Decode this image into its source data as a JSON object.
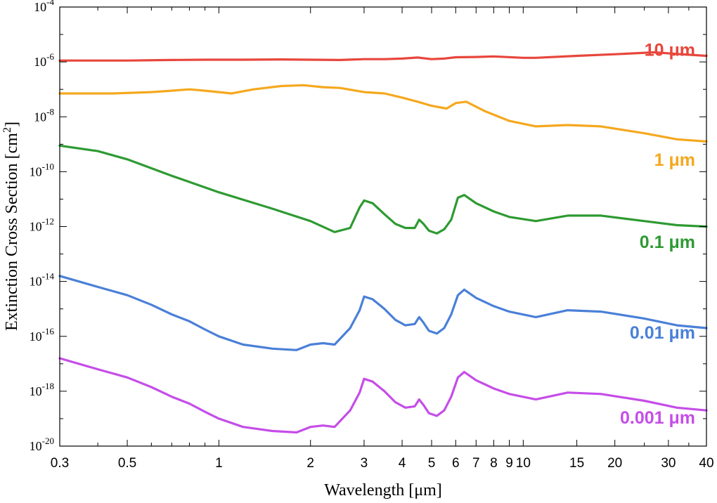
{
  "chart_data": {
    "type": "line",
    "title": "",
    "xlabel": "Wavelength [μm]",
    "ylabel": "Extinction Cross Section [cm2]",
    "xscale": "log",
    "yscale": "log",
    "xlim": [
      0.3,
      40
    ],
    "ylim_log10": [
      -20,
      -4
    ],
    "x_ticks": [
      {
        "value": 0.3,
        "label": "0.3"
      },
      {
        "value": 0.5,
        "label": "0.5"
      },
      {
        "value": 1,
        "label": "1"
      },
      {
        "value": 2,
        "label": "2"
      },
      {
        "value": 3,
        "label": "3"
      },
      {
        "value": 4,
        "label": "4"
      },
      {
        "value": 5,
        "label": "5"
      },
      {
        "value": 6,
        "label": "6"
      },
      {
        "value": 7,
        "label": "7"
      },
      {
        "value": 8,
        "label": "8"
      },
      {
        "value": 9,
        "label": "9"
      },
      {
        "value": 10,
        "label": "10"
      },
      {
        "value": 15,
        "label": "15"
      },
      {
        "value": 20,
        "label": "20"
      },
      {
        "value": 30,
        "label": "30"
      },
      {
        "value": 40,
        "label": "40"
      }
    ],
    "y_ticks": [
      {
        "exp": -4,
        "base": "10",
        "power": "-4"
      },
      {
        "exp": -6,
        "base": "10",
        "power": "-6"
      },
      {
        "exp": -8,
        "base": "10",
        "power": "-8"
      },
      {
        "exp": -10,
        "base": "10",
        "power": "-10"
      },
      {
        "exp": -12,
        "base": "10",
        "power": "-12"
      },
      {
        "exp": -14,
        "base": "10",
        "power": "-14"
      },
      {
        "exp": -16,
        "base": "10",
        "power": "-16"
      },
      {
        "exp": -18,
        "base": "10",
        "power": "-18"
      },
      {
        "exp": -20,
        "base": "10",
        "power": "-20"
      }
    ],
    "series": [
      {
        "name": "10 μm",
        "color": "#e8463c",
        "x": [
          0.3,
          0.5,
          0.7,
          0.9,
          1.2,
          1.6,
          2.0,
          2.5,
          3.0,
          3.5,
          4.0,
          4.5,
          5.0,
          5.5,
          6.0,
          7.0,
          8.0,
          10.0,
          11.0,
          15.0,
          20.0,
          27.0,
          33.0,
          40.0
        ],
        "log10y": [
          -5.95,
          -5.95,
          -5.93,
          -5.92,
          -5.92,
          -5.91,
          -5.92,
          -5.93,
          -5.9,
          -5.9,
          -5.88,
          -5.84,
          -5.9,
          -5.88,
          -5.83,
          -5.82,
          -5.8,
          -5.85,
          -5.85,
          -5.78,
          -5.72,
          -5.65,
          -5.72,
          -5.78
        ]
      },
      {
        "name": "1 μm",
        "color": "#f5a81e",
        "x": [
          0.3,
          0.45,
          0.6,
          0.7,
          0.8,
          0.9,
          1.0,
          1.1,
          1.3,
          1.6,
          1.9,
          2.2,
          2.5,
          3.0,
          3.5,
          4.0,
          4.5,
          5.0,
          5.6,
          6.0,
          6.5,
          7.5,
          9.0,
          11.0,
          14.0,
          18.0,
          25.0,
          32.0,
          40.0
        ],
        "log10y": [
          -7.15,
          -7.15,
          -7.1,
          -7.05,
          -7.0,
          -7.05,
          -7.1,
          -7.15,
          -7.0,
          -6.88,
          -6.85,
          -6.92,
          -6.95,
          -7.1,
          -7.15,
          -7.3,
          -7.45,
          -7.6,
          -7.7,
          -7.5,
          -7.45,
          -7.8,
          -8.15,
          -8.35,
          -8.3,
          -8.35,
          -8.6,
          -8.82,
          -8.9
        ]
      },
      {
        "name": "0.1 μm",
        "color": "#2e9a32",
        "x": [
          0.3,
          0.4,
          0.5,
          0.7,
          1.0,
          1.5,
          2.0,
          2.4,
          2.7,
          2.9,
          3.0,
          3.2,
          3.5,
          3.8,
          4.1,
          4.4,
          4.55,
          4.7,
          4.9,
          5.2,
          5.5,
          5.8,
          6.1,
          6.4,
          7.0,
          8.0,
          9.0,
          11.0,
          14.0,
          18.0,
          25.0,
          32.0,
          40.0
        ],
        "log10y": [
          -9.05,
          -9.25,
          -9.55,
          -10.15,
          -10.75,
          -11.35,
          -11.8,
          -12.2,
          -12.05,
          -11.3,
          -11.05,
          -11.15,
          -11.55,
          -11.9,
          -12.05,
          -12.05,
          -11.75,
          -11.9,
          -12.15,
          -12.25,
          -12.1,
          -11.75,
          -10.95,
          -10.85,
          -11.15,
          -11.45,
          -11.65,
          -11.8,
          -11.6,
          -11.6,
          -11.8,
          -11.95,
          -12.0
        ]
      },
      {
        "name": "0.01 μm",
        "color": "#4a80d8",
        "x": [
          0.3,
          0.4,
          0.5,
          0.6,
          0.7,
          0.8,
          0.9,
          1.0,
          1.2,
          1.5,
          1.8,
          2.0,
          2.2,
          2.4,
          2.7,
          2.9,
          3.0,
          3.2,
          3.5,
          3.8,
          4.1,
          4.4,
          4.55,
          4.7,
          4.9,
          5.2,
          5.5,
          5.8,
          6.1,
          6.4,
          7.0,
          8.0,
          9.0,
          11.0,
          14.0,
          18.0,
          25.0,
          32.0,
          40.0
        ],
        "log10y": [
          -13.8,
          -14.2,
          -14.5,
          -14.85,
          -15.2,
          -15.45,
          -15.75,
          -16.0,
          -16.3,
          -16.45,
          -16.5,
          -16.3,
          -16.25,
          -16.3,
          -15.7,
          -15.05,
          -14.55,
          -14.65,
          -15.0,
          -15.4,
          -15.6,
          -15.55,
          -15.3,
          -15.5,
          -15.8,
          -15.9,
          -15.7,
          -15.2,
          -14.5,
          -14.3,
          -14.6,
          -14.9,
          -15.1,
          -15.3,
          -15.05,
          -15.1,
          -15.35,
          -15.6,
          -15.7
        ]
      },
      {
        "name": "0.001 μm",
        "color": "#c54de8",
        "x": [
          0.3,
          0.4,
          0.5,
          0.6,
          0.7,
          0.8,
          0.9,
          1.0,
          1.2,
          1.5,
          1.8,
          2.0,
          2.2,
          2.4,
          2.7,
          2.9,
          3.0,
          3.2,
          3.5,
          3.8,
          4.1,
          4.4,
          4.55,
          4.7,
          4.9,
          5.2,
          5.5,
          5.8,
          6.1,
          6.4,
          7.0,
          8.0,
          9.0,
          11.0,
          14.0,
          18.0,
          25.0,
          32.0,
          40.0
        ],
        "log10y": [
          -16.8,
          -17.2,
          -17.5,
          -17.85,
          -18.2,
          -18.45,
          -18.75,
          -19.0,
          -19.3,
          -19.45,
          -19.5,
          -19.3,
          -19.25,
          -19.3,
          -18.7,
          -18.05,
          -17.55,
          -17.65,
          -18.0,
          -18.4,
          -18.6,
          -18.55,
          -18.3,
          -18.5,
          -18.8,
          -18.9,
          -18.7,
          -18.2,
          -17.5,
          -17.3,
          -17.6,
          -17.9,
          -18.1,
          -18.3,
          -18.05,
          -18.1,
          -18.35,
          -18.6,
          -18.7
        ]
      }
    ],
    "series_labels": [
      {
        "series": 0,
        "text": "10 μm",
        "log10y": -5.55,
        "x": 31.0
      },
      {
        "series": 1,
        "text": "1 μm",
        "log10y": -9.55,
        "x": 31.0
      },
      {
        "series": 2,
        "text": "0.1 μm",
        "log10y": -12.55,
        "x": 31.0
      },
      {
        "series": 3,
        "text": "0.01 μm",
        "log10y": -15.85,
        "x": 31.0
      },
      {
        "series": 4,
        "text": "0.001 μm",
        "log10y": -18.95,
        "x": 31.0
      }
    ]
  }
}
